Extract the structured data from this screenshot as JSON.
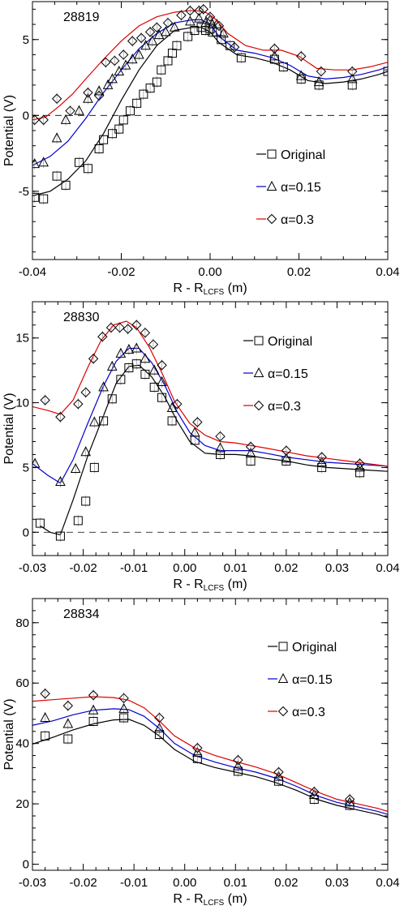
{
  "chart_data": [
    {
      "type": "line",
      "label": "28819",
      "xlabel_main": "R - R",
      "xlabel_sub": "LCFS",
      "xlabel_unit": " (m)",
      "ylabel": "Potential (V)",
      "xlim": [
        -0.04,
        0.04
      ],
      "ylim": [
        -9.5,
        7.5
      ],
      "xticks": [
        -0.04,
        -0.02,
        0.0,
        0.02,
        0.04
      ],
      "xtick_labels": [
        "-0.04",
        "-0.02",
        "0.00",
        "0.02",
        "0.04"
      ],
      "yticks": [
        -5,
        0,
        5
      ],
      "ytick_labels": [
        "-5",
        "0",
        "5"
      ],
      "zero_line": true,
      "series": [
        {
          "name": "Original",
          "color": "#000000",
          "marker": "square",
          "line_x": [
            -0.04,
            -0.036,
            -0.032,
            -0.028,
            -0.024,
            -0.02,
            -0.016,
            -0.012,
            -0.008,
            -0.004,
            -0.002,
            0.0,
            0.002,
            0.006,
            0.01,
            0.014,
            0.018,
            0.022,
            0.026,
            0.03,
            0.034,
            0.038,
            0.04
          ],
          "line_y": [
            -5.3,
            -5.0,
            -4.2,
            -3.0,
            -1.2,
            1.0,
            3.0,
            4.6,
            5.6,
            5.8,
            5.8,
            5.5,
            4.8,
            4.0,
            3.8,
            3.5,
            3.0,
            2.3,
            2.1,
            2.2,
            2.4,
            2.7,
            2.9
          ],
          "points_x": [
            -0.0395,
            -0.0375,
            -0.0345,
            -0.0325,
            -0.0295,
            -0.0275,
            -0.025,
            -0.024,
            -0.022,
            -0.0205,
            -0.0195,
            -0.018,
            -0.0165,
            -0.015,
            -0.0135,
            -0.012,
            -0.011,
            -0.0095,
            -0.0085,
            -0.0075,
            -0.005,
            -0.0035,
            -0.002,
            -0.001,
            0.0,
            0.0005,
            0.0015,
            0.0025,
            0.0045,
            0.007,
            0.0145,
            0.0165,
            0.0205,
            0.0245,
            0.032,
            0.04
          ],
          "points_y": [
            -5.4,
            -5.5,
            -4.0,
            -4.6,
            -3.1,
            -3.5,
            -2.2,
            -1.6,
            -1.2,
            -0.9,
            -0.3,
            0.3,
            0.8,
            1.4,
            1.8,
            2.2,
            3.0,
            3.6,
            4.1,
            4.6,
            5.2,
            5.6,
            5.8,
            5.6,
            5.7,
            5.5,
            5.5,
            5.0,
            4.6,
            3.8,
            3.7,
            3.2,
            2.4,
            2.0,
            2.0,
            2.9
          ]
        },
        {
          "name": "α=0.15",
          "color": "#0000cc",
          "marker": "triangle",
          "line_x": [
            -0.04,
            -0.036,
            -0.032,
            -0.028,
            -0.024,
            -0.02,
            -0.016,
            -0.012,
            -0.008,
            -0.004,
            -0.002,
            0.0,
            0.002,
            0.006,
            0.01,
            0.014,
            0.018,
            0.022,
            0.026,
            0.03,
            0.034,
            0.038,
            0.04
          ],
          "line_y": [
            -3.3,
            -2.7,
            -1.7,
            -0.2,
            1.5,
            3.0,
            4.4,
            5.4,
            6.1,
            6.3,
            6.3,
            6.0,
            5.2,
            4.3,
            4.1,
            3.8,
            3.3,
            2.6,
            2.4,
            2.5,
            2.7,
            3.0,
            3.2
          ],
          "points_x": [
            -0.0395,
            -0.0375,
            -0.0345,
            -0.0325,
            -0.0295,
            -0.0275,
            -0.025,
            -0.023,
            -0.022,
            -0.0205,
            -0.019,
            -0.0175,
            -0.016,
            -0.0145,
            -0.013,
            -0.0115,
            -0.01,
            -0.008,
            -0.0045,
            -0.0025,
            -0.001,
            0.0,
            0.0005,
            0.0015,
            0.003,
            0.0145,
            0.0205,
            0.0245,
            0.032
          ],
          "points_y": [
            -3.2,
            -3.1,
            -1.5,
            -0.3,
            0.3,
            1.1,
            1.6,
            2.0,
            2.4,
            2.9,
            3.3,
            3.7,
            4.0,
            4.6,
            4.9,
            5.3,
            5.5,
            5.8,
            6.2,
            6.4,
            6.1,
            6.3,
            6.0,
            6.0,
            5.4,
            3.9,
            2.6,
            2.2,
            2.4
          ]
        },
        {
          "name": "α=0.3",
          "color": "#dd0000",
          "marker": "diamond",
          "line_x": [
            -0.04,
            -0.037,
            -0.034,
            -0.031,
            -0.028,
            -0.024,
            -0.02,
            -0.016,
            -0.012,
            -0.008,
            -0.005,
            -0.003,
            -0.001,
            0.001,
            0.004,
            0.008,
            0.012,
            0.016,
            0.02,
            0.024,
            0.028,
            0.032,
            0.036,
            0.04
          ],
          "line_y": [
            -0.3,
            -0.1,
            0.6,
            1.4,
            2.4,
            3.7,
            4.9,
            5.9,
            6.5,
            6.8,
            6.9,
            6.9,
            6.8,
            6.4,
            5.4,
            4.6,
            4.3,
            4.3,
            3.9,
            3.1,
            3.0,
            3.0,
            3.2,
            3.5
          ],
          "points_x": [
            -0.0395,
            -0.0375,
            -0.0345,
            -0.0315,
            -0.0275,
            -0.025,
            -0.0235,
            -0.0215,
            -0.0195,
            -0.0175,
            -0.0155,
            -0.0135,
            -0.012,
            -0.0095,
            -0.0065,
            -0.0045,
            -0.0025,
            -0.0015,
            0.0,
            0.002,
            0.0055,
            0.0145,
            0.0205,
            0.025,
            0.032
          ],
          "points_y": [
            -0.3,
            -0.3,
            1.1,
            0.3,
            1.5,
            1.3,
            3.5,
            3.6,
            4.0,
            4.9,
            5.1,
            5.5,
            5.8,
            6.1,
            6.6,
            6.9,
            6.9,
            7.0,
            6.5,
            5.9,
            4.5,
            4.4,
            3.9,
            2.9,
            2.9
          ]
        }
      ]
    },
    {
      "type": "line",
      "label": "28830",
      "xlabel_main": "R - R",
      "xlabel_sub": "LCFS",
      "xlabel_unit": " (m)",
      "ylabel": "Potential (V)",
      "xlim": [
        -0.03,
        0.04
      ],
      "ylim": [
        -1.8,
        17.8
      ],
      "xticks": [
        -0.03,
        -0.02,
        -0.01,
        0.0,
        0.01,
        0.02,
        0.03,
        0.04
      ],
      "xtick_labels": [
        "-0.03",
        "-0.02",
        "-0.01",
        "0.00",
        "0.01",
        "0.02",
        "0.03",
        "0.04"
      ],
      "yticks": [
        0,
        5,
        10,
        15
      ],
      "ytick_labels": [
        "0",
        "5",
        "10",
        "15"
      ],
      "zero_line": true,
      "series": [
        {
          "name": "Original",
          "color": "#000000",
          "marker": "square",
          "line_x": [
            -0.0285,
            -0.0265,
            -0.0245,
            -0.022,
            -0.019,
            -0.016,
            -0.0135,
            -0.011,
            -0.009,
            -0.0065,
            -0.004,
            -0.0015,
            0.001,
            0.004,
            0.007,
            0.01,
            0.013,
            0.016,
            0.02,
            0.024,
            0.028,
            0.032,
            0.036,
            0.04
          ],
          "line_y": [
            0.5,
            0.0,
            -0.2,
            2.5,
            6.0,
            9.0,
            11.5,
            12.8,
            12.9,
            12.0,
            10.5,
            8.6,
            7.0,
            6.1,
            6.0,
            6.0,
            5.9,
            5.7,
            5.5,
            5.2,
            5.0,
            4.9,
            4.8,
            4.7
          ],
          "points_x": [
            -0.0285,
            -0.0245,
            -0.021,
            -0.0195,
            -0.0178,
            -0.016,
            -0.0143,
            -0.0126,
            -0.011,
            -0.0095,
            -0.0078,
            -0.006,
            -0.0045,
            -0.0025,
            0.002,
            0.007,
            0.013,
            0.02,
            0.027,
            0.0345
          ],
          "points_y": [
            0.7,
            -0.3,
            0.9,
            2.4,
            5.0,
            8.6,
            10.3,
            11.8,
            12.7,
            13.0,
            12.2,
            11.2,
            10.4,
            8.6,
            7.1,
            6.0,
            5.5,
            5.5,
            5.0,
            4.6
          ]
        },
        {
          "name": "α=0.15",
          "color": "#0000cc",
          "marker": "triangle",
          "line_x": [
            -0.03,
            -0.027,
            -0.0245,
            -0.022,
            -0.019,
            -0.016,
            -0.0135,
            -0.011,
            -0.009,
            -0.0065,
            -0.004,
            -0.0015,
            0.001,
            0.004,
            0.007,
            0.01,
            0.013,
            0.016,
            0.02,
            0.024,
            0.028,
            0.032,
            0.036,
            0.04
          ],
          "line_y": [
            5.3,
            4.4,
            3.8,
            5.6,
            8.5,
            11.3,
            13.2,
            14.2,
            14.2,
            13.1,
            11.4,
            9.3,
            7.7,
            6.7,
            6.3,
            6.3,
            6.3,
            6.1,
            5.8,
            5.6,
            5.4,
            5.3,
            5.2,
            5.1
          ],
          "points_x": [
            -0.0295,
            -0.0245,
            -0.0215,
            -0.0195,
            -0.0178,
            -0.016,
            -0.0143,
            -0.0126,
            -0.011,
            -0.0095,
            -0.0078,
            -0.006,
            -0.0045,
            -0.0025,
            0.002,
            0.007,
            0.013,
            0.02,
            0.027,
            0.0345
          ],
          "points_y": [
            5.3,
            3.9,
            4.9,
            6.2,
            8.5,
            11.2,
            12.8,
            13.8,
            14.1,
            14.2,
            13.4,
            12.5,
            11.6,
            9.6,
            7.7,
            6.5,
            6.1,
            5.7,
            5.4,
            5.0
          ]
        },
        {
          "name": "α=0.3",
          "color": "#dd0000",
          "marker": "diamond",
          "line_x": [
            -0.03,
            -0.027,
            -0.0245,
            -0.022,
            -0.019,
            -0.0165,
            -0.014,
            -0.0115,
            -0.0095,
            -0.007,
            -0.0045,
            -0.002,
            0.001,
            0.004,
            0.007,
            0.01,
            0.013,
            0.016,
            0.02,
            0.024,
            0.028,
            0.032,
            0.036,
            0.04
          ],
          "line_y": [
            9.7,
            9.4,
            9.1,
            10.2,
            12.8,
            14.8,
            16.0,
            16.3,
            15.8,
            14.3,
            12.3,
            10.1,
            8.4,
            7.5,
            7.0,
            6.9,
            6.7,
            6.5,
            6.2,
            5.9,
            5.7,
            5.5,
            5.3,
            5.1
          ],
          "points_x": [
            -0.0275,
            -0.0245,
            -0.021,
            -0.0195,
            -0.018,
            -0.0162,
            -0.0145,
            -0.0128,
            -0.0112,
            -0.0095,
            -0.0078,
            -0.0062,
            -0.0045,
            -0.0015,
            0.0025,
            0.007,
            0.013,
            0.02,
            0.027,
            0.0345
          ],
          "points_y": [
            10.2,
            8.9,
            9.9,
            10.8,
            13.4,
            15.1,
            15.8,
            15.8,
            15.7,
            16.0,
            15.4,
            14.5,
            12.9,
            9.9,
            8.5,
            7.4,
            6.6,
            6.3,
            5.8,
            5.3
          ]
        }
      ]
    },
    {
      "type": "line",
      "label": "28834",
      "xlabel_main": "R - R",
      "xlabel_sub": "LCFS",
      "xlabel_unit": " (m)",
      "ylabel": "Potential (V)",
      "xlim": [
        -0.03,
        0.04
      ],
      "ylim": [
        -2,
        88
      ],
      "xticks": [
        -0.03,
        -0.02,
        -0.01,
        0.0,
        0.01,
        0.02,
        0.03,
        0.04
      ],
      "xtick_labels": [
        "-0.03",
        "-0.02",
        "-0.01",
        "0.00",
        "0.01",
        "0.02",
        "0.03",
        "0.04"
      ],
      "yticks": [
        0,
        20,
        40,
        60,
        80
      ],
      "ytick_labels": [
        "0",
        "20",
        "40",
        "60",
        "80"
      ],
      "zero_line": false,
      "series": [
        {
          "name": "Original",
          "color": "#000000",
          "marker": "square",
          "line_x": [
            -0.03,
            -0.026,
            -0.022,
            -0.018,
            -0.014,
            -0.011,
            -0.008,
            -0.005,
            -0.002,
            0.002,
            0.006,
            0.01,
            0.014,
            0.018,
            0.022,
            0.026,
            0.03,
            0.034,
            0.038,
            0.04
          ],
          "line_y": [
            39.8,
            42.0,
            44.5,
            46.5,
            47.8,
            48.0,
            46.0,
            42.5,
            38.0,
            34.0,
            32.0,
            30.5,
            29.0,
            27.0,
            24.5,
            21.5,
            19.5,
            18.0,
            16.5,
            15.5
          ],
          "points_x": [
            -0.0275,
            -0.023,
            -0.018,
            -0.012,
            -0.005,
            0.0025,
            0.0105,
            0.0185,
            0.0255,
            0.0325
          ],
          "points_y": [
            42.5,
            41.5,
            47.3,
            48.5,
            43.0,
            35.0,
            30.8,
            27.5,
            21.5,
            19.5
          ]
        },
        {
          "name": "α=0.15",
          "color": "#0000cc",
          "marker": "triangle",
          "line_x": [
            -0.03,
            -0.026,
            -0.022,
            -0.018,
            -0.014,
            -0.011,
            -0.008,
            -0.005,
            -0.002,
            0.002,
            0.006,
            0.01,
            0.014,
            0.018,
            0.022,
            0.026,
            0.03,
            0.034,
            0.038,
            0.04
          ],
          "line_y": [
            46.0,
            47.5,
            49.5,
            51.0,
            51.5,
            51.2,
            49.0,
            45.0,
            40.0,
            36.0,
            33.8,
            32.0,
            30.5,
            28.5,
            25.8,
            22.7,
            20.5,
            19.0,
            17.5,
            16.5
          ],
          "points_x": [
            -0.0275,
            -0.023,
            -0.018,
            -0.012,
            -0.005,
            0.0025,
            0.0105,
            0.0185,
            0.0255,
            0.0325
          ],
          "points_y": [
            48.5,
            46.5,
            51.0,
            51.5,
            45.0,
            37.0,
            32.5,
            29.0,
            23.0,
            20.5
          ]
        },
        {
          "name": "α=0.3",
          "color": "#dd0000",
          "marker": "diamond",
          "line_x": [
            -0.03,
            -0.026,
            -0.022,
            -0.018,
            -0.014,
            -0.011,
            -0.008,
            -0.005,
            -0.002,
            0.002,
            0.006,
            0.01,
            0.014,
            0.018,
            0.022,
            0.026,
            0.03,
            0.034,
            0.038,
            0.04
          ],
          "line_y": [
            54.0,
            54.5,
            55.0,
            55.5,
            55.2,
            54.3,
            51.8,
            47.5,
            42.5,
            38.5,
            36.0,
            34.0,
            32.2,
            30.0,
            27.0,
            24.0,
            21.5,
            20.0,
            18.5,
            17.5
          ],
          "points_x": [
            -0.0275,
            -0.023,
            -0.018,
            -0.012,
            -0.005,
            0.0025,
            0.0105,
            0.0185,
            0.0255,
            0.0325
          ],
          "points_y": [
            56.5,
            52.5,
            56.0,
            55.0,
            48.5,
            38.5,
            34.5,
            30.5,
            24.0,
            21.5
          ]
        }
      ]
    }
  ]
}
